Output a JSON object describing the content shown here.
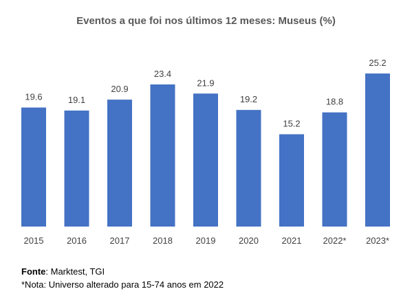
{
  "chart_data": {
    "type": "bar",
    "title": "Eventos a que foi nos últimos 12 meses: Museus (%)",
    "categories": [
      "2015",
      "2016",
      "2017",
      "2018",
      "2019",
      "2020",
      "2021",
      "2022*",
      "2023*"
    ],
    "values": [
      19.6,
      19.1,
      20.9,
      23.4,
      21.9,
      19.2,
      15.2,
      18.8,
      25.2
    ],
    "value_labels": [
      "19.6",
      "19.1",
      "20.9",
      "23.4",
      "21.9",
      "19.2",
      "15.2",
      "18.8",
      "25.2"
    ],
    "xlabel": "",
    "ylabel": "",
    "ylim": [
      0,
      26
    ],
    "grid": false,
    "legend": "none",
    "bar_color": "#4472C4"
  },
  "footer": {
    "source_label": "Fonte",
    "source_text": ": Marktest, TGI",
    "note": "*Nota: Universo alterado para 15-74 anos em 2022"
  }
}
